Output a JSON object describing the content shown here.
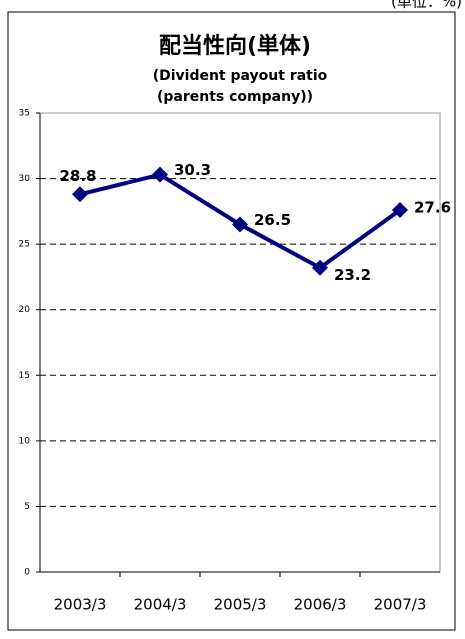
{
  "unit_note": "(単位：%)",
  "chart_data": {
    "type": "line",
    "title": "配当性向(単体)",
    "subtitle": [
      "(Divident payout ratio",
      "(parents company))"
    ],
    "categories": [
      "2003/3",
      "2004/3",
      "2005/3",
      "2006/3",
      "2007/3"
    ],
    "series": [
      {
        "name": "配当性向",
        "color": "#000080",
        "values": [
          28.8,
          30.3,
          26.5,
          23.2,
          27.6
        ]
      }
    ],
    "ylim": [
      0,
      35
    ],
    "yticks": [
      0,
      5,
      10,
      15,
      20,
      25,
      30,
      35
    ],
    "grid": true
  }
}
